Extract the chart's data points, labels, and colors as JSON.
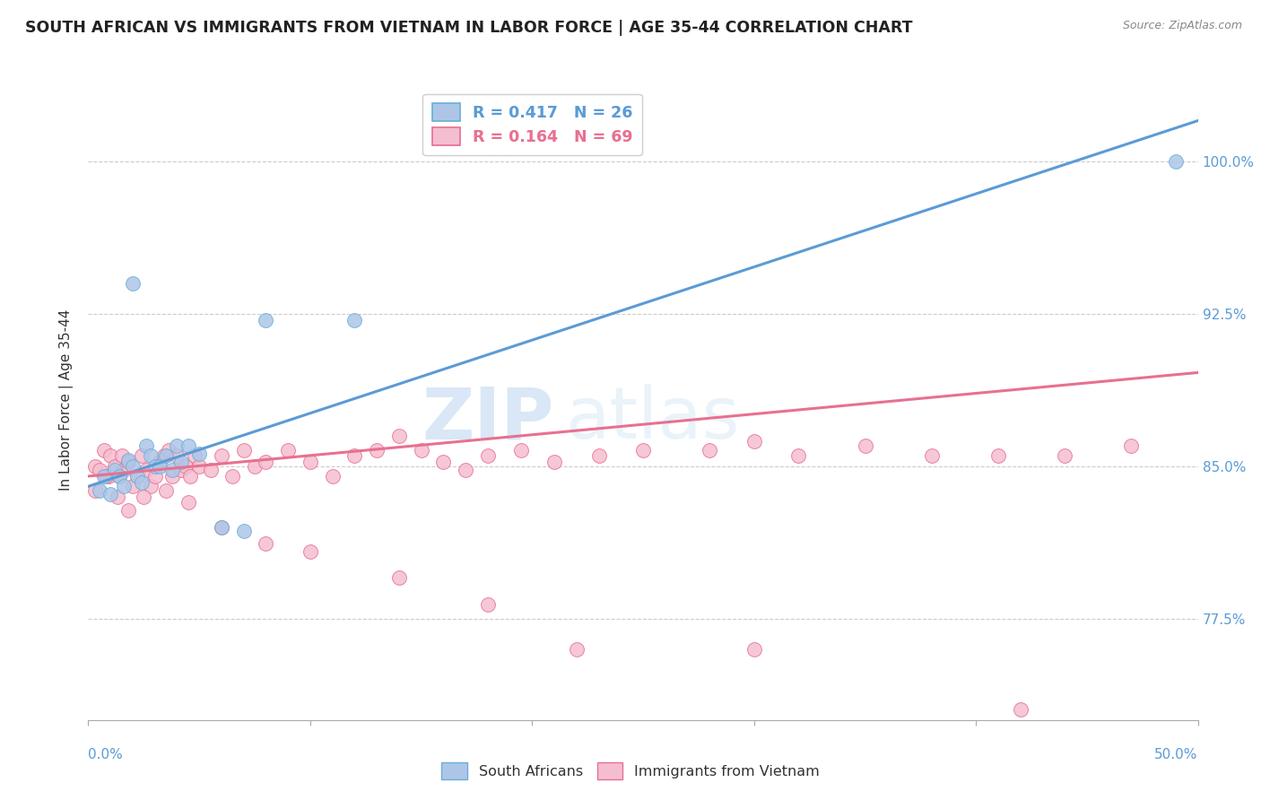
{
  "title": "SOUTH AFRICAN VS IMMIGRANTS FROM VIETNAM IN LABOR FORCE | AGE 35-44 CORRELATION CHART",
  "source_text": "Source: ZipAtlas.com",
  "ylabel": "In Labor Force | Age 35-44",
  "yticks": [
    0.775,
    0.85,
    0.925,
    1.0
  ],
  "ytick_labels": [
    "77.5%",
    "85.0%",
    "92.5%",
    "100.0%"
  ],
  "xmin": 0.0,
  "xmax": 0.5,
  "ymin": 0.725,
  "ymax": 1.04,
  "blue_R": 0.417,
  "blue_N": 26,
  "pink_R": 0.164,
  "pink_N": 69,
  "blue_color": "#adc6e8",
  "blue_edge": "#6aaed6",
  "pink_color": "#f5bdd0",
  "pink_edge": "#e87090",
  "blue_line_color": "#5b9bd5",
  "pink_line_color": "#e87090",
  "legend_label_blue": "South Africans",
  "legend_label_pink": "Immigrants from Vietnam",
  "watermark_zip": "ZIP",
  "watermark_atlas": "atlas",
  "watermark_color": "#c8ddf0",
  "blue_trend_x": [
    0.0,
    0.5
  ],
  "blue_trend_y": [
    0.84,
    1.02
  ],
  "pink_trend_x": [
    0.0,
    0.5
  ],
  "pink_trend_y": [
    0.845,
    0.896
  ],
  "blue_scatter_x": [
    0.005,
    0.007,
    0.01,
    0.012,
    0.014,
    0.016,
    0.018,
    0.02,
    0.022,
    0.024,
    0.026,
    0.028,
    0.03,
    0.032,
    0.035,
    0.038,
    0.04,
    0.042,
    0.045,
    0.05,
    0.06,
    0.07,
    0.08,
    0.12,
    0.02,
    0.49
  ],
  "blue_scatter_y": [
    0.838,
    0.845,
    0.836,
    0.848,
    0.845,
    0.84,
    0.853,
    0.85,
    0.845,
    0.842,
    0.86,
    0.855,
    0.85,
    0.85,
    0.855,
    0.848,
    0.86,
    0.852,
    0.86,
    0.856,
    0.82,
    0.818,
    0.922,
    0.922,
    0.94,
    1.0
  ],
  "pink_scatter_x": [
    0.003,
    0.005,
    0.007,
    0.009,
    0.01,
    0.012,
    0.014,
    0.015,
    0.016,
    0.018,
    0.02,
    0.022,
    0.024,
    0.026,
    0.028,
    0.03,
    0.032,
    0.034,
    0.036,
    0.038,
    0.04,
    0.042,
    0.044,
    0.046,
    0.048,
    0.05,
    0.055,
    0.06,
    0.065,
    0.07,
    0.075,
    0.08,
    0.09,
    0.1,
    0.11,
    0.12,
    0.13,
    0.14,
    0.15,
    0.16,
    0.17,
    0.18,
    0.195,
    0.21,
    0.23,
    0.25,
    0.28,
    0.3,
    0.32,
    0.35,
    0.38,
    0.41,
    0.44,
    0.47,
    0.003,
    0.008,
    0.013,
    0.018,
    0.025,
    0.035,
    0.045,
    0.06,
    0.08,
    0.1,
    0.14,
    0.18,
    0.22,
    0.3,
    0.42
  ],
  "pink_scatter_y": [
    0.85,
    0.848,
    0.858,
    0.845,
    0.855,
    0.85,
    0.845,
    0.855,
    0.848,
    0.852,
    0.84,
    0.845,
    0.855,
    0.848,
    0.84,
    0.845,
    0.852,
    0.855,
    0.858,
    0.845,
    0.855,
    0.848,
    0.85,
    0.845,
    0.855,
    0.85,
    0.848,
    0.855,
    0.845,
    0.858,
    0.85,
    0.852,
    0.858,
    0.852,
    0.845,
    0.855,
    0.858,
    0.865,
    0.858,
    0.852,
    0.848,
    0.855,
    0.858,
    0.852,
    0.855,
    0.858,
    0.858,
    0.862,
    0.855,
    0.86,
    0.855,
    0.855,
    0.855,
    0.86,
    0.838,
    0.845,
    0.835,
    0.828,
    0.835,
    0.838,
    0.832,
    0.82,
    0.812,
    0.808,
    0.795,
    0.782,
    0.76,
    0.76,
    0.73
  ]
}
